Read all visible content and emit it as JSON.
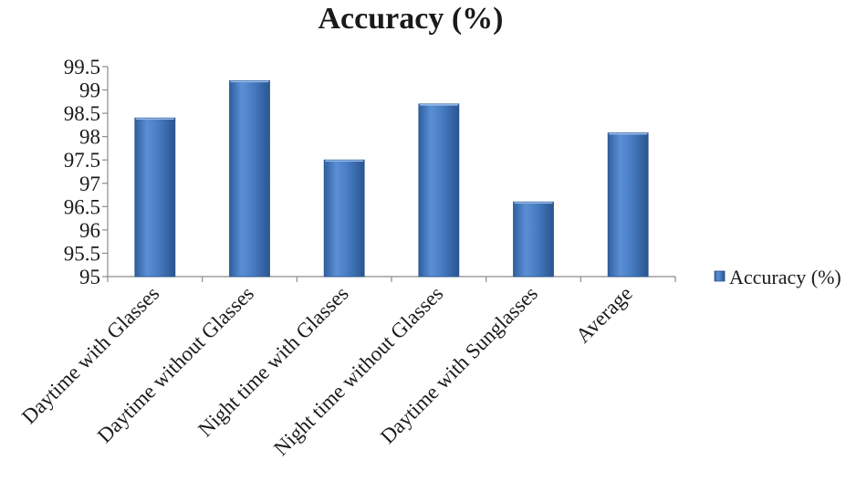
{
  "chart_data": {
    "type": "bar",
    "title": "Accuracy (%)",
    "xlabel": "",
    "ylabel": "",
    "categories": [
      "Daytime with Glasses",
      "Daytime without Glasses",
      "Night time with Glasses",
      "Night time without Glasses",
      "Daytime with Sunglasses",
      "Average"
    ],
    "series": [
      {
        "name": "Accuracy (%)",
        "values": [
          98.4,
          99.2,
          97.5,
          98.7,
          96.6,
          98.08
        ]
      }
    ],
    "ylim": [
      95,
      99.5
    ],
    "yticks": [
      "95",
      "95.5",
      "96",
      "96.5",
      "97",
      "97.5",
      "98",
      "98.5",
      "99",
      "99.5"
    ],
    "grid": false,
    "legend_position": "right",
    "colors": {
      "bar_top": "#6e9bd8",
      "bar_mid": "#4a7fc6",
      "bar_bottom": "#2f5f9e",
      "axis": "#8c8c8c"
    }
  }
}
